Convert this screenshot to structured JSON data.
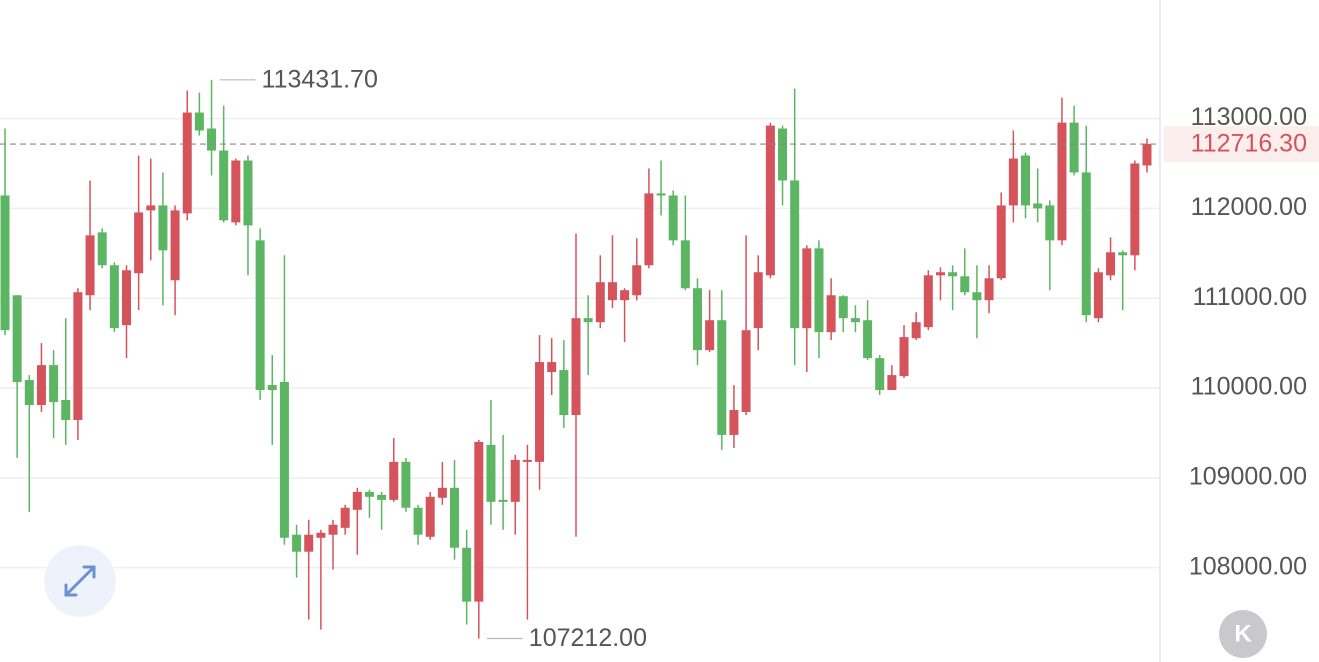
{
  "chart_data": {
    "type": "candlestick",
    "open": [
      112144,
      111033,
      110089,
      109811,
      110255,
      109867,
      109644,
      111033,
      111733,
      111367,
      110700,
      111278,
      111978,
      112033,
      111200,
      111944,
      113067,
      112889,
      112644,
      111844,
      112533,
      111644,
      110033,
      110067,
      108367,
      108178,
      108333,
      108367,
      108444,
      108644,
      108844,
      108811,
      108755,
      109178,
      108667,
      108344,
      108778,
      108889,
      108222,
      107622,
      109367,
      108755,
      108733,
      109178,
      109178,
      110178,
      110200,
      109700,
      110778,
      110733,
      110978,
      110978,
      111033,
      111367,
      112167,
      112144,
      111644,
      111111,
      110422,
      110755,
      109478,
      109733,
      110667,
      111255,
      112889,
      112311,
      110667,
      111555,
      110622,
      111022,
      110778,
      110755,
      110333,
      109978,
      110133,
      110555,
      110678,
      111255,
      111289,
      111244,
      111067,
      110978,
      111222,
      112033,
      112589,
      112055,
      112033,
      111644,
      112955,
      112400,
      110778,
      111255,
      111511,
      111478,
      112478
    ],
    "high": [
      112889,
      111033,
      110144,
      110500,
      110422,
      110778,
      111111,
      112311,
      111778,
      111400,
      111367,
      112589,
      112555,
      112400,
      112033,
      113311,
      113289,
      113431.7,
      113144,
      112555,
      112589,
      111778,
      110367,
      111478,
      108478,
      108533,
      108422,
      108533,
      108700,
      108889,
      108867,
      108844,
      109444,
      109222,
      108700,
      108844,
      109178,
      109200,
      108422,
      109422,
      109867,
      109478,
      109255,
      109367,
      110589,
      110555,
      110533,
      111722,
      111033,
      111478,
      111700,
      111111,
      111667,
      112444,
      112533,
      112200,
      112144,
      111222,
      111089,
      111089,
      110033,
      111700,
      111478,
      112955,
      112922,
      113333,
      111589,
      111644,
      111222,
      111033,
      110922,
      110978,
      110367,
      110255,
      110700,
      110844,
      111311,
      111344,
      111367,
      111555,
      111367,
      111367,
      112178,
      112867,
      112622,
      112444,
      112089,
      113233,
      113144,
      112922,
      111333,
      111678,
      111533,
      112533,
      112778
    ],
    "low": [
      110589,
      109222,
      108622,
      109733,
      109444,
      109367,
      109422,
      110867,
      111333,
      110622,
      110333,
      110867,
      111422,
      110922,
      110811,
      111867,
      112811,
      112367,
      111844,
      111811,
      111255,
      109867,
      109367,
      108255,
      107889,
      107422,
      107311,
      107978,
      108367,
      108144,
      108555,
      108422,
      108733,
      108622,
      108255,
      108311,
      108700,
      108089,
      107367,
      107212,
      108478,
      108422,
      108367,
      107422,
      108867,
      109922,
      109555,
      108344,
      110144,
      110667,
      110889,
      110511,
      110978,
      111333,
      111922,
      111589,
      111089,
      110255,
      110400,
      109311,
      109333,
      109700,
      110422,
      111222,
      112033,
      110255,
      110178,
      110333,
      110533,
      110622,
      110622,
      110311,
      109922,
      109978,
      110111,
      110533,
      110644,
      110978,
      110867,
      111033,
      110555,
      110833,
      111200,
      111844,
      111889,
      111844,
      111089,
      111589,
      112367,
      110733,
      110733,
      111200,
      110867,
      111311,
      112400
    ],
    "close": [
      110644,
      110067,
      109811,
      110255,
      109844,
      109644,
      111067,
      111700,
      111367,
      110667,
      111311,
      111955,
      112033,
      111533,
      111978,
      113067,
      112867,
      112644,
      111867,
      112533,
      111811,
      109978,
      109978,
      108333,
      108178,
      108367,
      108389,
      108478,
      108667,
      108844,
      108789,
      108755,
      109178,
      108667,
      108367,
      108789,
      108889,
      108222,
      107622,
      109400,
      108733,
      108733,
      109200,
      109200,
      110289,
      110289,
      109700,
      110778,
      110733,
      111178,
      111178,
      111089,
      111367,
      112167,
      112144,
      111644,
      111111,
      110422,
      110755,
      109478,
      109755,
      110644,
      111289,
      112922,
      112311,
      110667,
      111555,
      110622,
      111033,
      110778,
      110733,
      110333,
      109978,
      110144,
      110567,
      110733,
      111255,
      111289,
      111244,
      111067,
      110978,
      111222,
      112033,
      112555,
      112033,
      112000,
      111644,
      112955,
      112400,
      110811,
      111289,
      111511,
      111478,
      112500,
      112716.3
    ],
    "up_color": "#d5535a",
    "down_color": "#5bb562",
    "ylim": [
      106950,
      114320
    ],
    "yticks": [
      {
        "value": 108000,
        "label": "108000.00"
      },
      {
        "value": 109000,
        "label": "109000.00"
      },
      {
        "value": 110000,
        "label": "110000.00"
      },
      {
        "value": 111000,
        "label": "111000.00"
      },
      {
        "value": 112000,
        "label": "112000.00"
      },
      {
        "value": 113000,
        "label": "113000.00"
      }
    ],
    "grid": true,
    "annotations": [
      {
        "value": 113431.7,
        "label": "113431.70"
      },
      {
        "value": 107212,
        "label": "107212.00"
      }
    ],
    "last_price": {
      "value": 112716.3,
      "label": "112716.30"
    },
    "corner_button": "K"
  }
}
